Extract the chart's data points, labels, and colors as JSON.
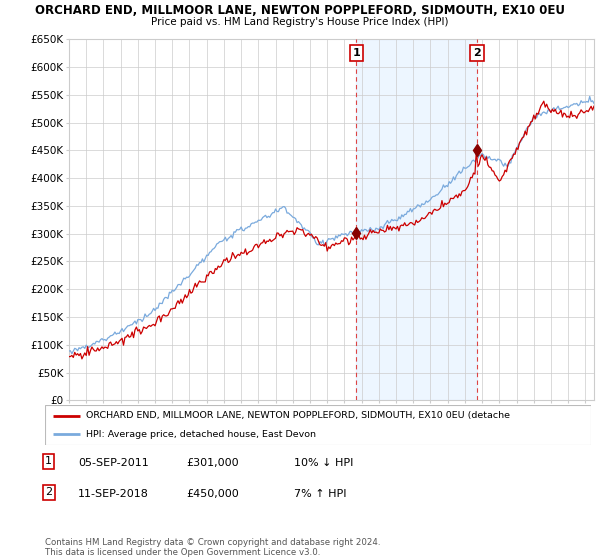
{
  "title1": "ORCHARD END, MILLMOOR LANE, NEWTON POPPLEFORD, SIDMOUTH, EX10 0EU",
  "title2": "Price paid vs. HM Land Registry's House Price Index (HPI)",
  "ylabel_ticks": [
    "£0",
    "£50K",
    "£100K",
    "£150K",
    "£200K",
    "£250K",
    "£300K",
    "£350K",
    "£400K",
    "£450K",
    "£500K",
    "£550K",
    "£600K",
    "£650K"
  ],
  "ytick_values": [
    0,
    50000,
    100000,
    150000,
    200000,
    250000,
    300000,
    350000,
    400000,
    450000,
    500000,
    550000,
    600000,
    650000
  ],
  "hpi_color": "#7aaadd",
  "price_color": "#cc0000",
  "marker_color": "#880000",
  "dashed_color": "#dd4444",
  "shade_color": "#ddeeff",
  "grid_color": "#cccccc",
  "purchase1_date_num": 2011.7,
  "purchase1_price": 301000,
  "purchase2_date_num": 2018.7,
  "purchase2_price": 450000,
  "legend_label_red": "ORCHARD END, MILLMOOR LANE, NEWTON POPPLEFORD, SIDMOUTH, EX10 0EU (detache",
  "legend_label_blue": "HPI: Average price, detached house, East Devon",
  "footer": "Contains HM Land Registry data © Crown copyright and database right 2024.\nThis data is licensed under the Open Government Licence v3.0.",
  "xmin": 1995.0,
  "xmax": 2025.5,
  "ymin": 0,
  "ymax": 650000
}
